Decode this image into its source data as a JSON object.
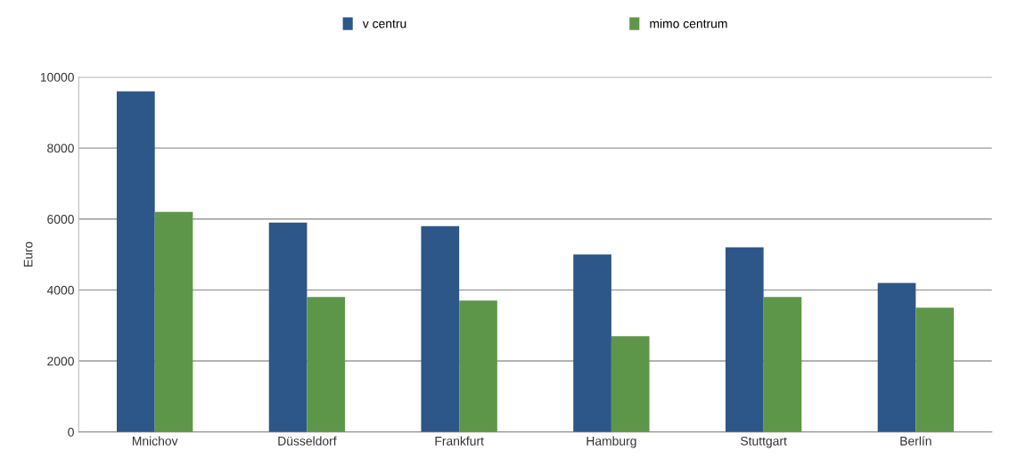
{
  "chart_data": {
    "type": "bar",
    "ylabel": "Euro",
    "categories": [
      "Mnichov",
      "Düsseldorf",
      "Frankfurt",
      "Hamburg",
      "Stuttgart",
      "Berlín"
    ],
    "series": [
      {
        "name": "v centru",
        "color": "#2d5689",
        "values": [
          9600,
          5900,
          5800,
          5000,
          5200,
          4200
        ]
      },
      {
        "name": "mimo centrum",
        "color": "#5d9648",
        "values": [
          6200,
          3800,
          3700,
          2700,
          3800,
          3500
        ]
      }
    ],
    "ylim": [
      0,
      10000
    ],
    "yticks": [
      0,
      2000,
      4000,
      6000,
      8000,
      10000
    ],
    "grid": "y",
    "legend": "top"
  }
}
